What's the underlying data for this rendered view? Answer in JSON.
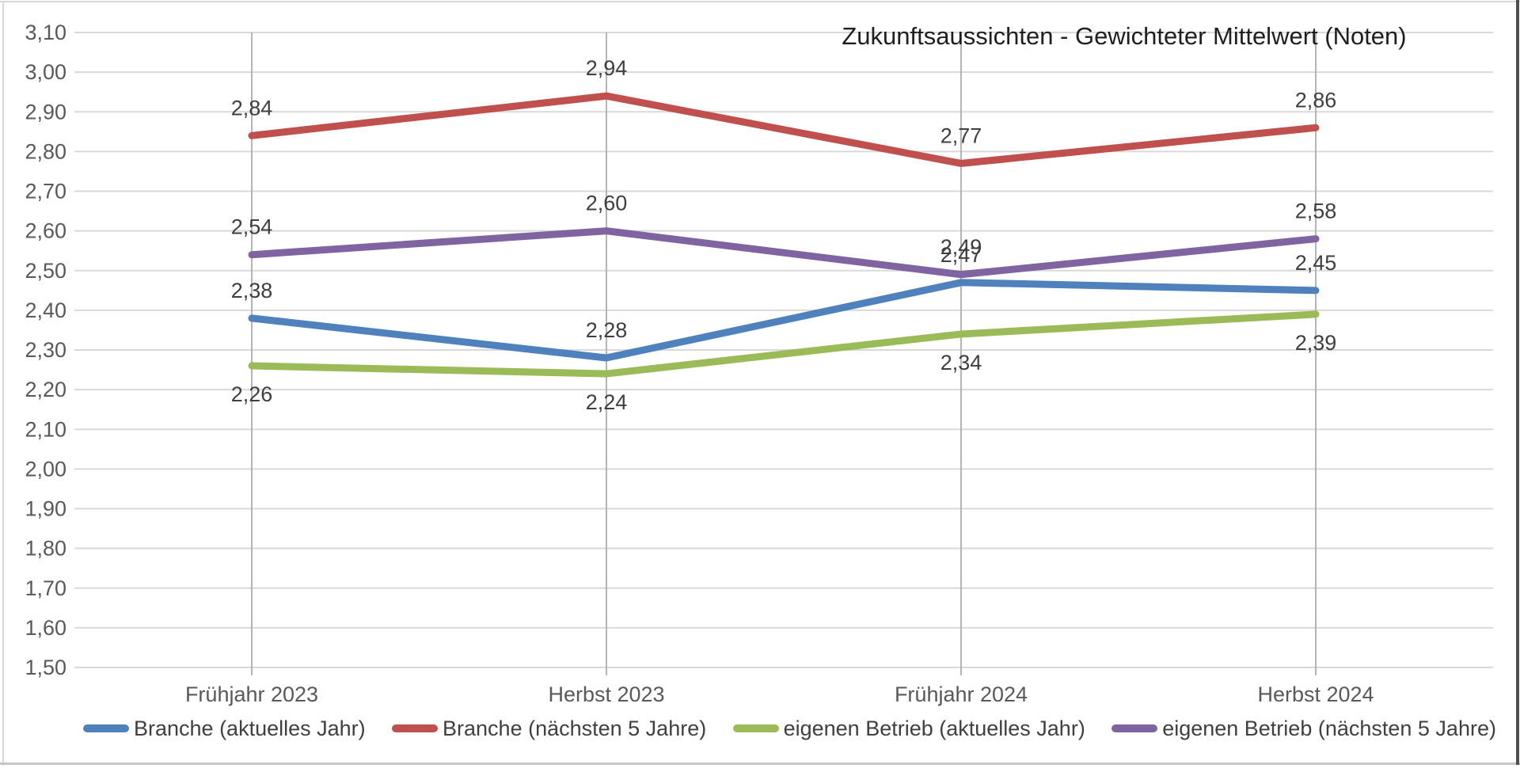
{
  "chart_data": {
    "type": "line",
    "title": "Zukunftsaussichten - Gewichteter Mittelwert (Noten)",
    "categories": [
      "Frühjahr 2023",
      "Herbst 2023",
      "Frühjahr 2024",
      "Herbst 2024"
    ],
    "series": [
      {
        "name": "Branche (aktuelles Jahr)",
        "color": "#4F81BD",
        "values": [
          2.38,
          2.28,
          2.47,
          2.45
        ],
        "labels": [
          "2,38",
          "2,28",
          "2,47",
          "2,45"
        ],
        "label_position": "above"
      },
      {
        "name": "Branche (nächsten 5 Jahre)",
        "color": "#C0504D",
        "values": [
          2.84,
          2.94,
          2.77,
          2.86
        ],
        "labels": [
          "2,84",
          "2,94",
          "2,77",
          "2,86"
        ],
        "label_position": "above"
      },
      {
        "name": "eigenen Betrieb (aktuelles Jahr)",
        "color": "#9BBB59",
        "values": [
          2.26,
          2.24,
          2.34,
          2.39
        ],
        "labels": [
          "2,26",
          "2,24",
          "2,34",
          "2,39"
        ],
        "label_position": "below"
      },
      {
        "name": "eigenen Betrieb (nächsten 5 Jahre)",
        "color": "#8064A2",
        "values": [
          2.54,
          2.6,
          2.49,
          2.58
        ],
        "labels": [
          "2,54",
          "2,60",
          "2,49",
          "2,58"
        ],
        "label_position": "above"
      }
    ],
    "y_axis": {
      "min": 1.5,
      "max": 3.1,
      "step": 0.1,
      "tick_labels": [
        "3,10",
        "3,00",
        "2,90",
        "2,80",
        "2,70",
        "2,60",
        "2,50",
        "2,40",
        "2,30",
        "2,20",
        "2,10",
        "2,00",
        "1,90",
        "1,80",
        "1,70",
        "1,60",
        "1,50"
      ]
    },
    "grid": true,
    "legend_position": "bottom"
  }
}
